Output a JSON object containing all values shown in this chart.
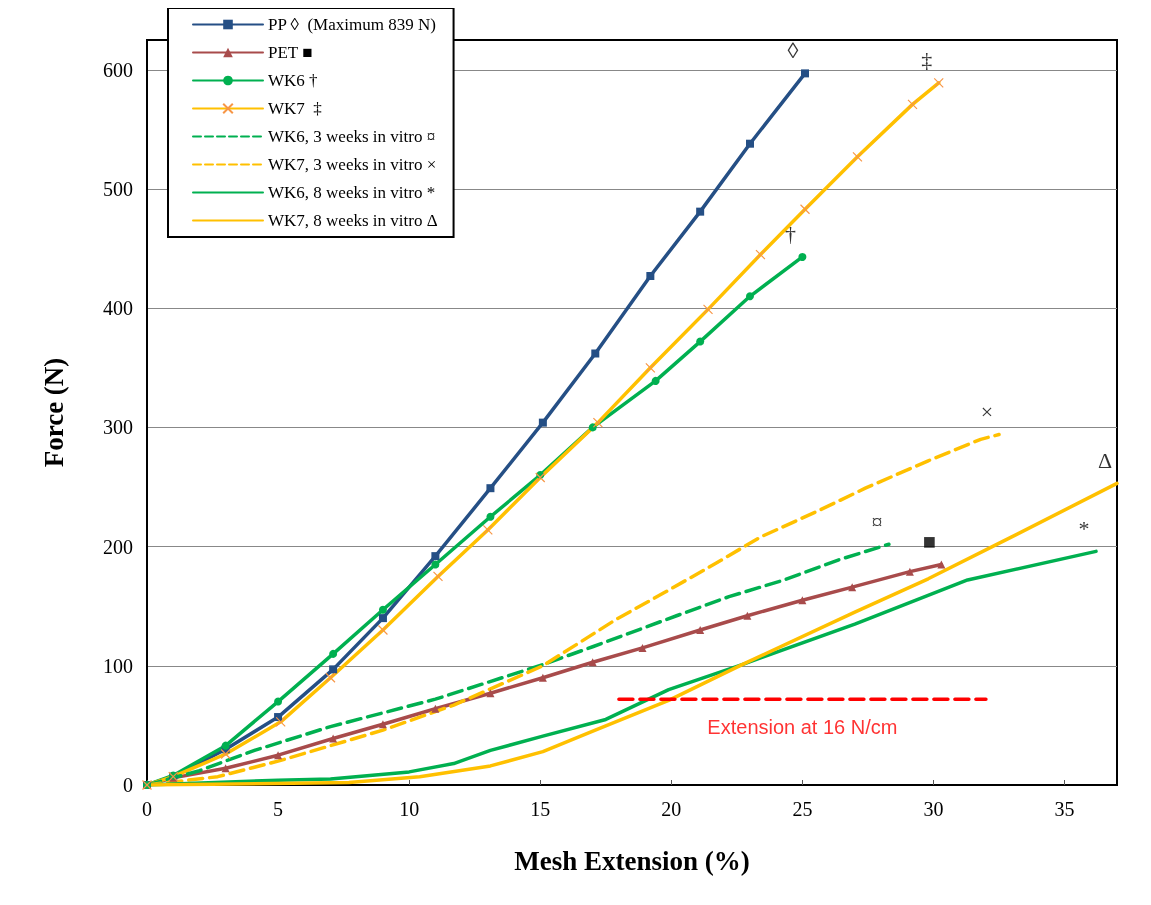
{
  "chart_data": {
    "type": "line",
    "xlabel": "Mesh Extension (%)",
    "ylabel": "Force (N)",
    "xlim": [
      0,
      37
    ],
    "ylim": [
      0,
      625
    ],
    "xticks": [
      0,
      5,
      10,
      15,
      20,
      25,
      30,
      35
    ],
    "yticks": [
      0,
      100,
      200,
      300,
      400,
      500,
      600
    ],
    "grid": "y",
    "legend": "top left",
    "series": [
      {
        "name": "PP ◊  (Maximum 839 N)",
        "color": "#254f85",
        "marker": "square",
        "line_style": "solid",
        "x": [
          0,
          1,
          3,
          5,
          7.1,
          9,
          11,
          13.1,
          15.1,
          17.1,
          19.2,
          21.1,
          23,
          25.1
        ],
        "values": [
          0,
          7,
          30,
          57,
          97,
          140,
          192,
          249,
          304,
          362,
          427,
          481,
          538,
          597
        ]
      },
      {
        "name": "PET ■",
        "color": "#a84b4b",
        "marker": "triangle",
        "line_style": "solid",
        "x": [
          0,
          1,
          3,
          5,
          7.1,
          9,
          11,
          13.1,
          15.1,
          17,
          18.9,
          21.1,
          22.9,
          25,
          26.9,
          29.1,
          30.3
        ],
        "values": [
          0,
          6,
          14,
          25,
          39,
          51,
          64,
          77,
          90,
          103,
          115,
          130,
          142,
          155,
          166,
          179,
          185
        ]
      },
      {
        "name": "WK6 †",
        "color": "#00b050",
        "marker": "circle",
        "line_style": "solid",
        "x": [
          0,
          1,
          3,
          5,
          7.1,
          9,
          11,
          13.1,
          15,
          17,
          19.4,
          21.1,
          23,
          25
        ],
        "values": [
          0,
          8,
          33,
          70,
          110,
          147,
          185,
          225,
          260,
          300,
          339,
          372,
          410,
          443
        ]
      },
      {
        "name": "WK7  ‡",
        "color": "#ffc000",
        "marker": "cross",
        "line_style": "solid",
        "x": [
          0,
          1,
          3,
          5.1,
          7,
          9,
          11.1,
          13,
          15,
          17.2,
          19.2,
          21.4,
          23.4,
          25.1,
          27.1,
          29.2,
          30.2
        ],
        "values": [
          0,
          7,
          26,
          53,
          90,
          130,
          175,
          214,
          258,
          304,
          350,
          399,
          445,
          483,
          527,
          571,
          589
        ]
      },
      {
        "name": "WK6, 3 weeks in vitro ¤",
        "color": "#00b050",
        "marker": "none",
        "line_style": "dashed",
        "x": [
          0,
          2,
          4.1,
          7,
          11,
          15.1,
          17,
          20.2,
          22.2,
          24.3,
          26.4,
          28.3
        ],
        "values": [
          0,
          12,
          29,
          49,
          72,
          101,
          116,
          142,
          158,
          172,
          189,
          202
        ]
      },
      {
        "name": "WK7, 3 weeks in vitro ×",
        "color": "#ffc000",
        "marker": "none",
        "line_style": "dashed",
        "x": [
          0,
          2.7,
          5,
          9,
          11.7,
          15.1,
          17.9,
          19.7,
          21.7,
          23.4,
          25.6,
          27.4,
          29.8,
          31.8,
          32.5
        ],
        "values": [
          0,
          7,
          20,
          46,
          67,
          100,
          139,
          161,
          186,
          208,
          230,
          249,
          272,
          290,
          294
        ]
      },
      {
        "name": "WK6, 8 weeks in vitro *",
        "color": "#00b050",
        "marker": "none",
        "line_style": "solid",
        "x": [
          0,
          5,
          7,
          10,
          11.7,
          13.1,
          15.1,
          17.5,
          19.9,
          22.7,
          27,
          31.3,
          36.2
        ],
        "values": [
          0,
          4,
          5,
          11,
          18,
          29,
          41,
          55,
          80,
          101,
          135,
          172,
          196
        ]
      },
      {
        "name": "WK7, 8 weeks in vitro Δ",
        "color": "#ffc000",
        "marker": "none",
        "line_style": "solid",
        "x": [
          0,
          7.7,
          10.4,
          13.1,
          15.1,
          17.1,
          19.9,
          22.7,
          27,
          29.8,
          32.7,
          37
        ],
        "values": [
          0,
          2,
          7,
          16,
          28,
          46,
          71,
          101,
          145,
          173,
          205,
          253
        ]
      },
      {
        "color": "#ff0000",
        "marker": "none",
        "line_style": "dashed",
        "x": [
          18,
          32
        ],
        "values": [
          72,
          72
        ]
      }
    ],
    "annotations": [
      "◊",
      "■",
      "†",
      "‡",
      "¤",
      "×",
      "*",
      "Δ",
      "Extension at 16 N/cm"
    ]
  }
}
